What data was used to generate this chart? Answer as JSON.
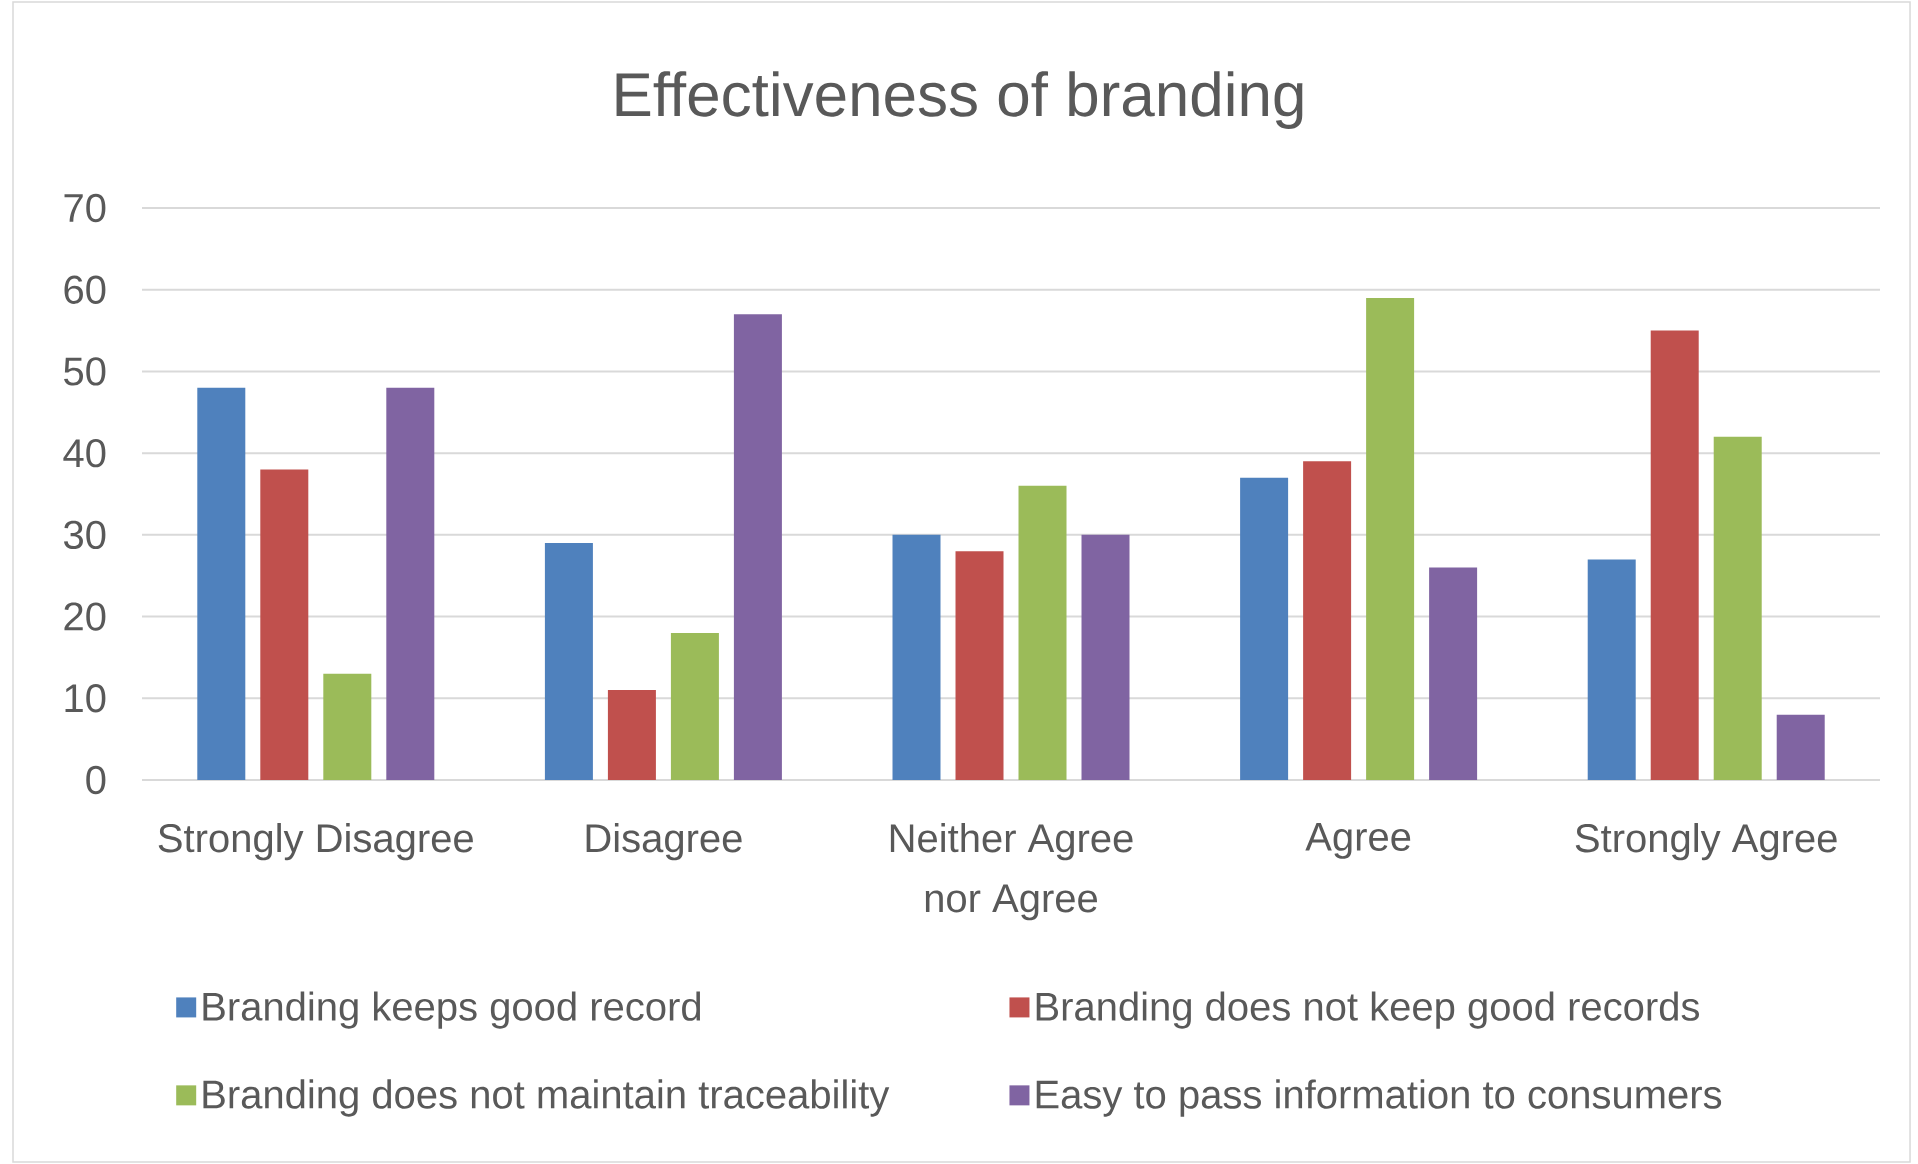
{
  "chart_data": {
    "type": "bar",
    "title": "Effectiveness of branding",
    "categories": [
      "Strongly Disagree",
      "Disagree",
      "Neither Agree nor Agree",
      "Agree",
      "Strongly Agree"
    ],
    "series": [
      {
        "name": "Branding keeps good record",
        "color": "#4f81bd",
        "values": [
          48,
          29,
          30,
          37,
          27
        ]
      },
      {
        "name": "Branding does not keep good records",
        "color": "#c0504d",
        "values": [
          38,
          11,
          28,
          39,
          55
        ]
      },
      {
        "name": "Branding does not maintain traceability",
        "color": "#9bbb59",
        "values": [
          13,
          18,
          36,
          59,
          42
        ]
      },
      {
        "name": "Easy to pass information to consumers",
        "color": "#8064a2",
        "values": [
          48,
          57,
          30,
          26,
          8
        ]
      }
    ],
    "ylim": [
      0,
      70
    ],
    "yticks": [
      0,
      10,
      20,
      30,
      40,
      50,
      60,
      70
    ],
    "grid": "y",
    "legend": "bottom"
  }
}
